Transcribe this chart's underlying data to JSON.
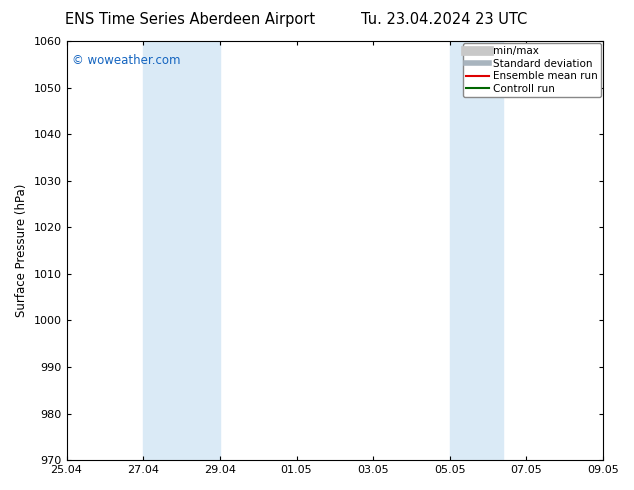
{
  "title_left": "ENS Time Series Aberdeen Airport",
  "title_right": "Tu. 23.04.2024 23 UTC",
  "ylabel": "Surface Pressure (hPa)",
  "ylim": [
    970,
    1060
  ],
  "yticks": [
    970,
    980,
    990,
    1000,
    1010,
    1020,
    1030,
    1040,
    1050,
    1060
  ],
  "xtick_labels": [
    "25.04",
    "27.04",
    "29.04",
    "01.05",
    "03.05",
    "05.05",
    "07.05",
    "09.05"
  ],
  "shade_bands": [
    {
      "x_start": 2,
      "x_end": 4
    },
    {
      "x_start": 10,
      "x_end": 11.4
    }
  ],
  "shade_color": "#daeaf6",
  "background_color": "#ffffff",
  "plot_bg_color": "#ffffff",
  "watermark": "© woweather.com",
  "watermark_color": "#1565c0",
  "legend_items": [
    {
      "label": "min/max",
      "color": "#c8c8c8",
      "linestyle": "-",
      "linewidth": 7
    },
    {
      "label": "Standard deviation",
      "color": "#a8b4be",
      "linestyle": "-",
      "linewidth": 4
    },
    {
      "label": "Ensemble mean run",
      "color": "#dd0000",
      "linestyle": "-",
      "linewidth": 1.5
    },
    {
      "label": "Controll run",
      "color": "#006600",
      "linestyle": "-",
      "linewidth": 1.5
    }
  ],
  "title_fontsize": 10.5,
  "ylabel_fontsize": 8.5,
  "tick_fontsize": 8,
  "legend_fontsize": 7.5,
  "xlim": [
    0,
    14
  ]
}
